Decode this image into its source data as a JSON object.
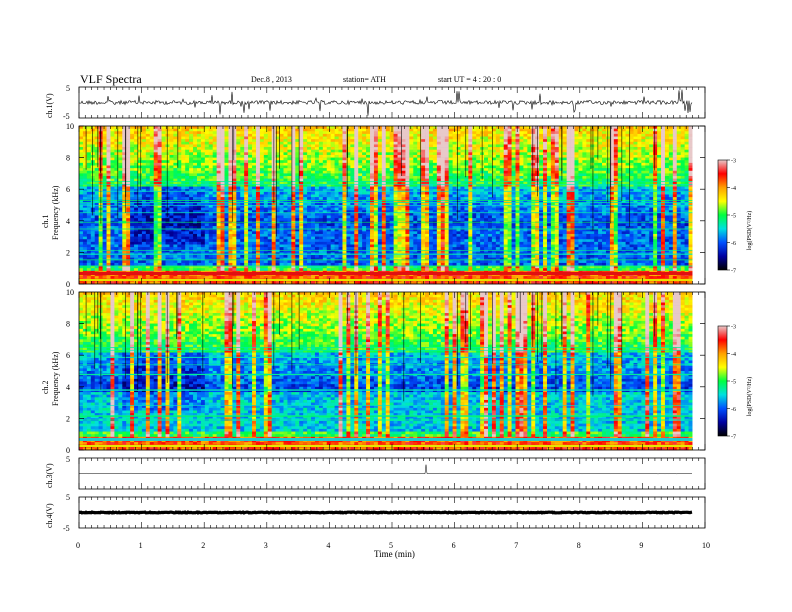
{
  "header": {
    "title": "VLF  Spectra",
    "date": "Dec.8  , 2013",
    "station": "station= ATH",
    "start": "start  UT  =   4  : 20 : 0"
  },
  "colorbar": {
    "label": "log(PSD(V²/Hz)",
    "ticks": [
      "-3",
      "-4",
      "-5",
      "-6",
      "-7"
    ],
    "stops": [
      "#e8c9c9",
      "#ff0000",
      "#ffa000",
      "#ffff00",
      "#00ff40",
      "#00e0e0",
      "#0050ff",
      "#0000a0",
      "#000000"
    ]
  },
  "chart_data": [
    {
      "type": "line",
      "panel": "ch1",
      "ylabel": "ch.1(V)",
      "ylim": [
        -5,
        5
      ],
      "yticks": [
        "5",
        "-5"
      ],
      "baseline": 0,
      "description_level": "noisy trace near 0 V with frequent spikes"
    },
    {
      "type": "heatmap",
      "panel": "ch1-spectrogram",
      "ylabel_top": "ch.1",
      "ylabel": "Frequency  (kHz)",
      "ylim": [
        0,
        10
      ],
      "yticks": [
        "0",
        "2",
        "4",
        "6",
        "8",
        "10"
      ],
      "z_range": [
        -7,
        -3
      ]
    },
    {
      "type": "heatmap",
      "panel": "ch2-spectrogram",
      "ylabel_top": "ch.2",
      "ylabel": "Frequency  (kHz)",
      "ylim": [
        0,
        10
      ],
      "yticks": [
        "0",
        "2",
        "4",
        "6",
        "8",
        "10"
      ],
      "z_range": [
        -7,
        -3
      ]
    },
    {
      "type": "line",
      "panel": "ch3",
      "ylabel": "ch.3(V)",
      "ylim": [
        -5,
        5
      ],
      "yticks": [
        "5"
      ],
      "baseline": 0
    },
    {
      "type": "line",
      "panel": "ch4",
      "ylabel": "ch.4(V)",
      "ylim": [
        -5,
        5
      ],
      "yticks": [
        "5",
        "-5"
      ],
      "baseline": 0
    }
  ],
  "xaxis": {
    "label": "Time  (min)",
    "xlim": [
      0,
      10
    ],
    "ticks": [
      "0",
      "1",
      "2",
      "3",
      "4",
      "5",
      "6",
      "7",
      "8",
      "9",
      "10"
    ],
    "data_end": 9.8
  }
}
